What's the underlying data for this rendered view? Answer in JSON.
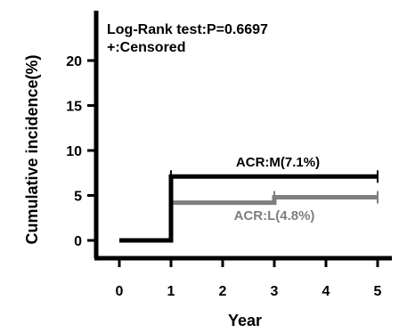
{
  "chart_data": {
    "type": "line",
    "xlabel": "Year",
    "ylabel": "Cumulative incidence(%)",
    "xlim": [
      0,
      5
    ],
    "ylim": [
      0,
      22
    ],
    "xticks": [
      "0",
      "1",
      "2",
      "3",
      "4",
      "5"
    ],
    "yticks": [
      "0",
      "5",
      "10",
      "15",
      "20"
    ],
    "annotations": [
      "Log-Rank test:P=0.6697",
      "+:Censored"
    ],
    "grid": false,
    "series": [
      {
        "name": "ACR:M(7.1%)",
        "color": "#000000",
        "steps": [
          [
            0,
            0
          ],
          [
            1,
            0
          ],
          [
            1,
            7.1
          ],
          [
            5,
            7.1
          ]
        ],
        "censored_x": [
          1,
          5
        ]
      },
      {
        "name": "ACR:L(4.8%)",
        "color": "#7f7f7f",
        "steps": [
          [
            1,
            4.2
          ],
          [
            3,
            4.2
          ],
          [
            3,
            4.8
          ],
          [
            5,
            4.8
          ]
        ],
        "censored_x": [
          1,
          3,
          5
        ]
      }
    ]
  }
}
